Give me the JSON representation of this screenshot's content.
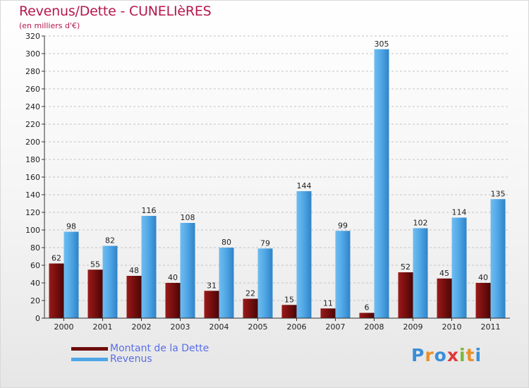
{
  "title": "Revenus/Dette - CUNELIèRES",
  "subtitle": "(en milliers d'€)",
  "logo": {
    "text": "Proxiti",
    "letters": [
      "P",
      "r",
      "o",
      "x",
      "i",
      "t",
      "i"
    ],
    "colors": [
      "#3a8ed8",
      "#e8902b",
      "#3a8ed8",
      "#e03a3a",
      "#7ab83a",
      "#e8902b",
      "#3a8ed8"
    ]
  },
  "colors": {
    "dette": "#6e0c0c",
    "revenus": "#4da6e6",
    "title": "#b5174e",
    "legend_text": "#5a6ee8"
  },
  "chart_data": {
    "type": "bar",
    "title": "Revenus/Dette - CUNELIèRES",
    "ylabel": "(en milliers d'€)",
    "xlabel": "",
    "ylim": [
      0,
      320
    ],
    "yticks": [
      0,
      20,
      40,
      60,
      80,
      100,
      120,
      140,
      160,
      180,
      200,
      220,
      240,
      260,
      280,
      300,
      320
    ],
    "grid": "horizontal dashed",
    "legend_position": "bottom-left",
    "categories": [
      "2000",
      "2001",
      "2002",
      "2003",
      "2004",
      "2005",
      "2006",
      "2007",
      "2008",
      "2009",
      "2010",
      "2011"
    ],
    "series": [
      {
        "name": "Montant de la Dette",
        "color": "#6e0c0c",
        "values": [
          62,
          55,
          48,
          40,
          31,
          22,
          15,
          11,
          6,
          52,
          45,
          40
        ]
      },
      {
        "name": "Revenus",
        "color": "#4da6e6",
        "values": [
          98,
          82,
          116,
          108,
          80,
          79,
          144,
          99,
          305,
          102,
          114,
          135
        ]
      }
    ]
  }
}
